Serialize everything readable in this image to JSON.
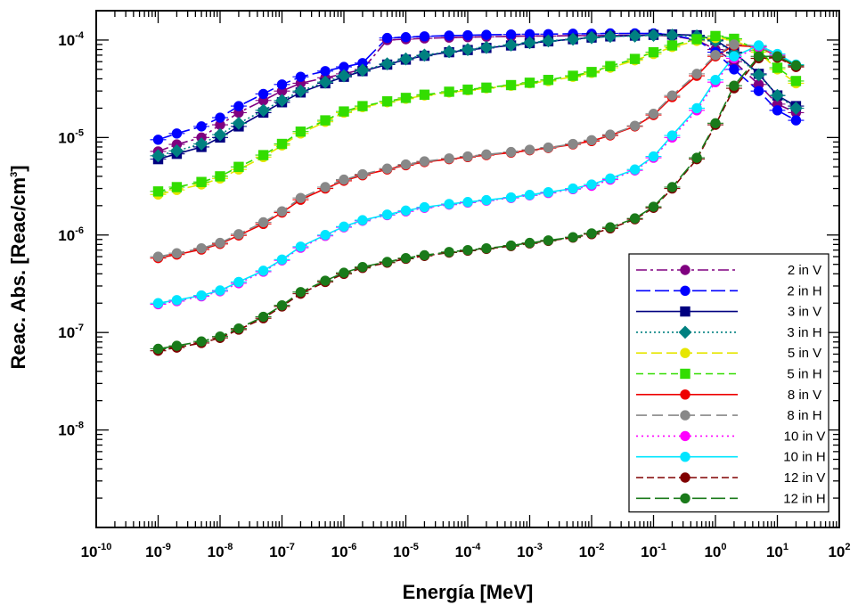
{
  "chart_data": {
    "type": "line",
    "xlabel": "Energía  [MeV]",
    "ylabel": {
      "main": "Reac. Abs. [Reac/cm",
      "sup": "3",
      "close": "]"
    },
    "x_scale": "log",
    "y_scale": "log",
    "xlim": [
      1e-10,
      100
    ],
    "ylim": [
      1e-09,
      0.0002
    ],
    "x_ticks": [
      {
        "base": "10",
        "exp": "-10",
        "value": 1e-10
      },
      {
        "base": "10",
        "exp": "-9",
        "value": 1e-09
      },
      {
        "base": "10",
        "exp": "-8",
        "value": 1e-08
      },
      {
        "base": "10",
        "exp": "-7",
        "value": 1e-07
      },
      {
        "base": "10",
        "exp": "-6",
        "value": 1e-06
      },
      {
        "base": "10",
        "exp": "-5",
        "value": 1e-05
      },
      {
        "base": "10",
        "exp": "-4",
        "value": 0.0001
      },
      {
        "base": "10",
        "exp": "-3",
        "value": 0.001
      },
      {
        "base": "10",
        "exp": "-2",
        "value": 0.01
      },
      {
        "base": "10",
        "exp": "-1",
        "value": 0.1
      },
      {
        "base": "10",
        "exp": "0",
        "value": 1
      },
      {
        "base": "10",
        "exp": "1",
        "value": 10
      },
      {
        "base": "10",
        "exp": "2",
        "value": 100
      }
    ],
    "y_ticks": [
      {
        "base": "10",
        "exp": "-8",
        "value": 1e-08
      },
      {
        "base": "10",
        "exp": "-7",
        "value": 1e-07
      },
      {
        "base": "10",
        "exp": "-6",
        "value": 1e-06
      },
      {
        "base": "10",
        "exp": "-5",
        "value": 1e-05
      },
      {
        "base": "10",
        "exp": "-4",
        "value": 0.0001
      }
    ],
    "grid": false,
    "legend_position": "bottom-right",
    "x": [
      1e-09,
      2e-09,
      5e-09,
      1e-08,
      2e-08,
      5e-08,
      1e-07,
      2e-07,
      5e-07,
      1e-06,
      2e-06,
      5e-06,
      1e-05,
      2e-05,
      5e-05,
      0.0001,
      0.0002,
      0.0005,
      0.001,
      0.002,
      0.005,
      0.01,
      0.02,
      0.05,
      0.1,
      0.2,
      0.5,
      1,
      2,
      5,
      10,
      20
    ],
    "series": [
      {
        "name": "2 in V",
        "color": "#800080",
        "marker": "circle",
        "dash": "12,4,3,4",
        "values": [
          7.2e-06,
          8.5e-06,
          1e-05,
          1.35e-05,
          1.8e-05,
          2.4e-05,
          3e-05,
          3.6e-05,
          4.1e-05,
          4.5e-05,
          5e-05,
          0.0001,
          0.000102,
          0.000104,
          0.000106,
          0.000107,
          0.000108,
          0.000109,
          0.00011,
          0.00011,
          0.000111,
          0.000111,
          0.000112,
          0.000112,
          0.000112,
          0.00011,
          0.0001,
          8e-05,
          6e-05,
          3.5e-05,
          2.2e-05,
          1.8e-05
        ]
      },
      {
        "name": "2 in H",
        "color": "#0000ff",
        "marker": "circle",
        "dash": "16,5",
        "values": [
          9.5e-06,
          1.1e-05,
          1.3e-05,
          1.6e-05,
          2.1e-05,
          2.8e-05,
          3.5e-05,
          4.2e-05,
          4.8e-05,
          5.3e-05,
          5.8e-05,
          0.000105,
          0.000107,
          0.000109,
          0.000111,
          0.000112,
          0.000113,
          0.000114,
          0.000115,
          0.000115,
          0.000116,
          0.000116,
          0.000117,
          0.000117,
          0.000117,
          0.000113,
          0.0001,
          7.5e-05,
          5e-05,
          3e-05,
          1.9e-05,
          1.5e-05
        ]
      },
      {
        "name": "3 in V",
        "color": "#000080",
        "marker": "square",
        "dash": "",
        "values": [
          6e-06,
          6.8e-06,
          8e-06,
          1e-05,
          1.3e-05,
          1.8e-05,
          2.3e-05,
          2.9e-05,
          3.6e-05,
          4.2e-05,
          4.8e-05,
          5.6e-05,
          6.3e-05,
          6.9e-05,
          7.5e-05,
          7.9e-05,
          8.3e-05,
          8.8e-05,
          9.3e-05,
          9.7e-05,
          0.000102,
          0.000106,
          0.000109,
          0.000111,
          0.000113,
          0.000114,
          0.000112,
          0.0001,
          7.5e-05,
          4.5e-05,
          2.7e-05,
          2.1e-05
        ]
      },
      {
        "name": "3 in H",
        "color": "#008080",
        "marker": "diamond",
        "dash": "2,3",
        "values": [
          6.5e-06,
          7.3e-06,
          8.6e-06,
          1.07e-05,
          1.4e-05,
          1.9e-05,
          2.4e-05,
          3e-05,
          3.7e-05,
          4.3e-05,
          4.9e-05,
          5.7e-05,
          6.4e-05,
          7e-05,
          7.6e-05,
          8e-05,
          8.4e-05,
          8.9e-05,
          9.4e-05,
          9.8e-05,
          0.000102,
          0.000106,
          0.000109,
          0.00011,
          0.000112,
          0.000112,
          0.00011,
          9.8e-05,
          7.3e-05,
          4.4e-05,
          2.7e-05,
          2e-05
        ]
      },
      {
        "name": "5 in V",
        "color": "#e6e600",
        "marker": "circle",
        "dash": "12,5",
        "values": [
          2.6e-06,
          2.9e-06,
          3.3e-06,
          3.8e-06,
          4.7e-06,
          6.3e-06,
          8.3e-06,
          1.1e-05,
          1.45e-05,
          1.8e-05,
          2.05e-05,
          2.3e-05,
          2.5e-05,
          2.7e-05,
          2.9e-05,
          3.05e-05,
          3.2e-05,
          3.4e-05,
          3.6e-05,
          3.8e-05,
          4.2e-05,
          4.6e-05,
          5.2e-05,
          6.2e-05,
          7.2e-05,
          8.5e-05,
          9.8e-05,
          0.000105,
          0.0001,
          7.5e-05,
          5e-05,
          3.6e-05
        ]
      },
      {
        "name": "5 in H",
        "color": "#33dd00",
        "marker": "square",
        "dash": "8,5",
        "values": [
          2.8e-06,
          3.1e-06,
          3.5e-06,
          4e-06,
          5e-06,
          6.6e-06,
          8.6e-06,
          1.15e-05,
          1.5e-05,
          1.85e-05,
          2.1e-05,
          2.35e-05,
          2.55e-05,
          2.75e-05,
          2.95e-05,
          3.1e-05,
          3.25e-05,
          3.45e-05,
          3.65e-05,
          3.9e-05,
          4.3e-05,
          4.7e-05,
          5.4e-05,
          6.4e-05,
          7.5e-05,
          8.8e-05,
          0.000102,
          0.00011,
          0.000103,
          7.8e-05,
          5.2e-05,
          3.8e-05
        ]
      },
      {
        "name": "8 in V",
        "color": "#ee0000",
        "marker": "circle",
        "dash": "",
        "values": [
          5.8e-07,
          6.3e-07,
          7.1e-07,
          8.1e-07,
          9.9e-07,
          1.3e-06,
          1.7e-06,
          2.3e-06,
          3e-06,
          3.6e-06,
          4.1e-06,
          4.7e-06,
          5.2e-06,
          5.6e-06,
          6e-06,
          6.3e-06,
          6.6e-06,
          7e-06,
          7.4e-06,
          7.8e-06,
          8.5e-06,
          9.2e-06,
          1.05e-05,
          1.3e-05,
          1.7e-05,
          2.6e-05,
          4.3e-05,
          6.8e-05,
          8.8e-05,
          8.5e-05,
          6.8e-05,
          5.3e-05
        ]
      },
      {
        "name": "8 in H",
        "color": "#888888",
        "marker": "circle",
        "dash": "12,6",
        "values": [
          6e-07,
          6.5e-07,
          7.3e-07,
          8.3e-07,
          1.02e-06,
          1.35e-06,
          1.75e-06,
          2.4e-06,
          3.1e-06,
          3.7e-06,
          4.2e-06,
          4.8e-06,
          5.3e-06,
          5.7e-06,
          6.1e-06,
          6.4e-06,
          6.7e-06,
          7.1e-06,
          7.5e-06,
          7.9e-06,
          8.6e-06,
          9.4e-06,
          1.07e-05,
          1.32e-05,
          1.75e-05,
          2.7e-05,
          4.5e-05,
          7e-05,
          9e-05,
          8.7e-05,
          6.9e-05,
          5.4e-05
        ]
      },
      {
        "name": "10 in V",
        "color": "#ff00ff",
        "marker": "circle",
        "dash": "2,4",
        "values": [
          1.95e-07,
          2.1e-07,
          2.35e-07,
          2.65e-07,
          3.2e-07,
          4.2e-07,
          5.5e-07,
          7.4e-07,
          9.8e-07,
          1.2e-06,
          1.4e-06,
          1.6e-06,
          1.75e-06,
          1.9e-06,
          2.05e-06,
          2.15e-06,
          2.25e-06,
          2.4e-06,
          2.55e-06,
          2.7e-06,
          2.95e-06,
          3.2e-06,
          3.7e-06,
          4.6e-06,
          6.2e-06,
          1e-05,
          1.9e-05,
          3.7e-05,
          6.5e-05,
          8.5e-05,
          7e-05,
          5.5e-05
        ]
      },
      {
        "name": "10 in H",
        "color": "#00e5ff",
        "marker": "circle",
        "dash": "",
        "values": [
          2e-07,
          2.15e-07,
          2.4e-07,
          2.7e-07,
          3.3e-07,
          4.3e-07,
          5.6e-07,
          7.6e-07,
          1e-06,
          1.22e-06,
          1.42e-06,
          1.62e-06,
          1.78e-06,
          1.93e-06,
          2.08e-06,
          2.18e-06,
          2.28e-06,
          2.43e-06,
          2.58e-06,
          2.75e-06,
          3e-06,
          3.3e-06,
          3.8e-06,
          4.7e-06,
          6.4e-06,
          1.05e-05,
          2e-05,
          3.9e-05,
          6.8e-05,
          8.8e-05,
          7.2e-05,
          5.6e-05
        ]
      },
      {
        "name": "12 in V",
        "color": "#800000",
        "marker": "circle",
        "dash": "8,4",
        "values": [
          6.5e-08,
          7e-08,
          7.8e-08,
          8.8e-08,
          1.07e-07,
          1.4e-07,
          1.85e-07,
          2.5e-07,
          3.3e-07,
          4e-07,
          4.6e-07,
          5.2e-07,
          5.7e-07,
          6.1e-07,
          6.6e-07,
          6.9e-07,
          7.2e-07,
          7.7e-07,
          8.2e-07,
          8.7e-07,
          9.4e-07,
          1.02e-06,
          1.17e-06,
          1.45e-06,
          1.9e-06,
          3e-06,
          6e-06,
          1.35e-05,
          3.2e-05,
          6.5e-05,
          6.6e-05,
          5.3e-05
        ]
      },
      {
        "name": "12 in H",
        "color": "#1a7a1a",
        "marker": "circle",
        "dash": "16,5",
        "values": [
          6.8e-08,
          7.3e-08,
          8.1e-08,
          9.1e-08,
          1.1e-07,
          1.45e-07,
          1.9e-07,
          2.6e-07,
          3.4e-07,
          4.1e-07,
          4.7e-07,
          5.3e-07,
          5.8e-07,
          6.2e-07,
          6.7e-07,
          7e-07,
          7.3e-07,
          7.8e-07,
          8.3e-07,
          8.8e-07,
          9.5e-07,
          1.04e-06,
          1.2e-06,
          1.48e-06,
          1.95e-06,
          3.1e-06,
          6.2e-06,
          1.4e-05,
          3.4e-05,
          6.8e-05,
          6.8e-05,
          5.5e-05
        ]
      }
    ]
  }
}
